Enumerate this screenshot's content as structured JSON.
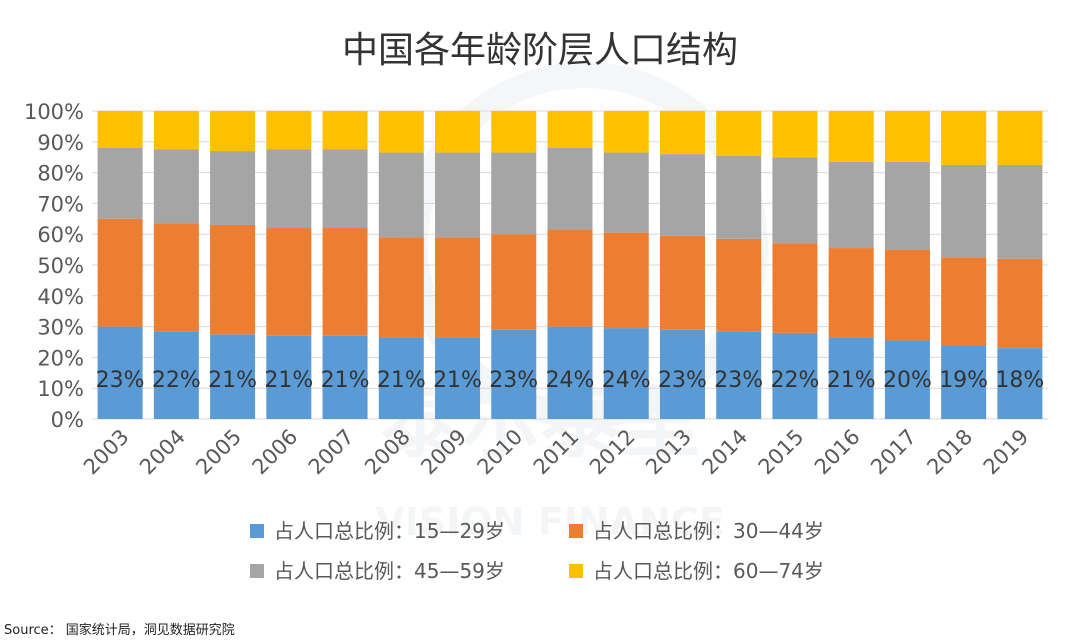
{
  "chart_data": {
    "type": "bar",
    "stacked": true,
    "normalized": true,
    "title": "中国各年龄阶层人口结构",
    "xlabel": "",
    "ylabel": "",
    "ylim": [
      0,
      100
    ],
    "yticks": [
      "0%",
      "10%",
      "20%",
      "30%",
      "40%",
      "50%",
      "60%",
      "70%",
      "80%",
      "90%",
      "100%"
    ],
    "categories": [
      "2003",
      "2004",
      "2005",
      "2006",
      "2007",
      "2008",
      "2009",
      "2010",
      "2011",
      "2012",
      "2013",
      "2014",
      "2015",
      "2016",
      "2017",
      "2018",
      "2019"
    ],
    "series": [
      {
        "name": "占人口总比例：15—29岁",
        "color": "#5B9BD5",
        "values": [
          30,
          28.5,
          27.5,
          27,
          27,
          26.5,
          26.5,
          29,
          30,
          29.5,
          29,
          28.5,
          28,
          26.5,
          25.5,
          24,
          23
        ]
      },
      {
        "name": "占人口总比例：30—44岁",
        "color": "#ED7D31",
        "values": [
          35,
          35,
          35.5,
          35,
          35,
          32.5,
          32.5,
          31,
          31.5,
          31,
          30.5,
          30,
          29,
          29,
          29.5,
          28.5,
          29
        ]
      },
      {
        "name": "占人口总比例：45—59岁",
        "color": "#A5A5A5",
        "values": [
          23,
          24,
          24,
          25.5,
          25.5,
          27.5,
          27.5,
          26.5,
          26.5,
          26,
          26.5,
          27,
          28,
          28,
          28.5,
          30,
          30.5
        ]
      },
      {
        "name": "占人口总比例：60—74岁",
        "color": "#FFC000",
        "values": [
          12,
          12.5,
          13,
          12.5,
          12.5,
          13.5,
          13.5,
          13.5,
          12,
          13.5,
          14,
          14.5,
          15,
          16.5,
          16.5,
          17.5,
          17.5
        ]
      }
    ],
    "data_labels": [
      "23%",
      "22%",
      "21%",
      "21%",
      "21%",
      "21%",
      "21%",
      "23%",
      "24%",
      "24%",
      "23%",
      "23%",
      "22%",
      "21%",
      "20%",
      "19%",
      "18%"
    ],
    "legend_position": "bottom",
    "watermark": "泰尔泰里 VISION FINANCE"
  },
  "source": "Source：  国家统计局，洞见数据研究院"
}
